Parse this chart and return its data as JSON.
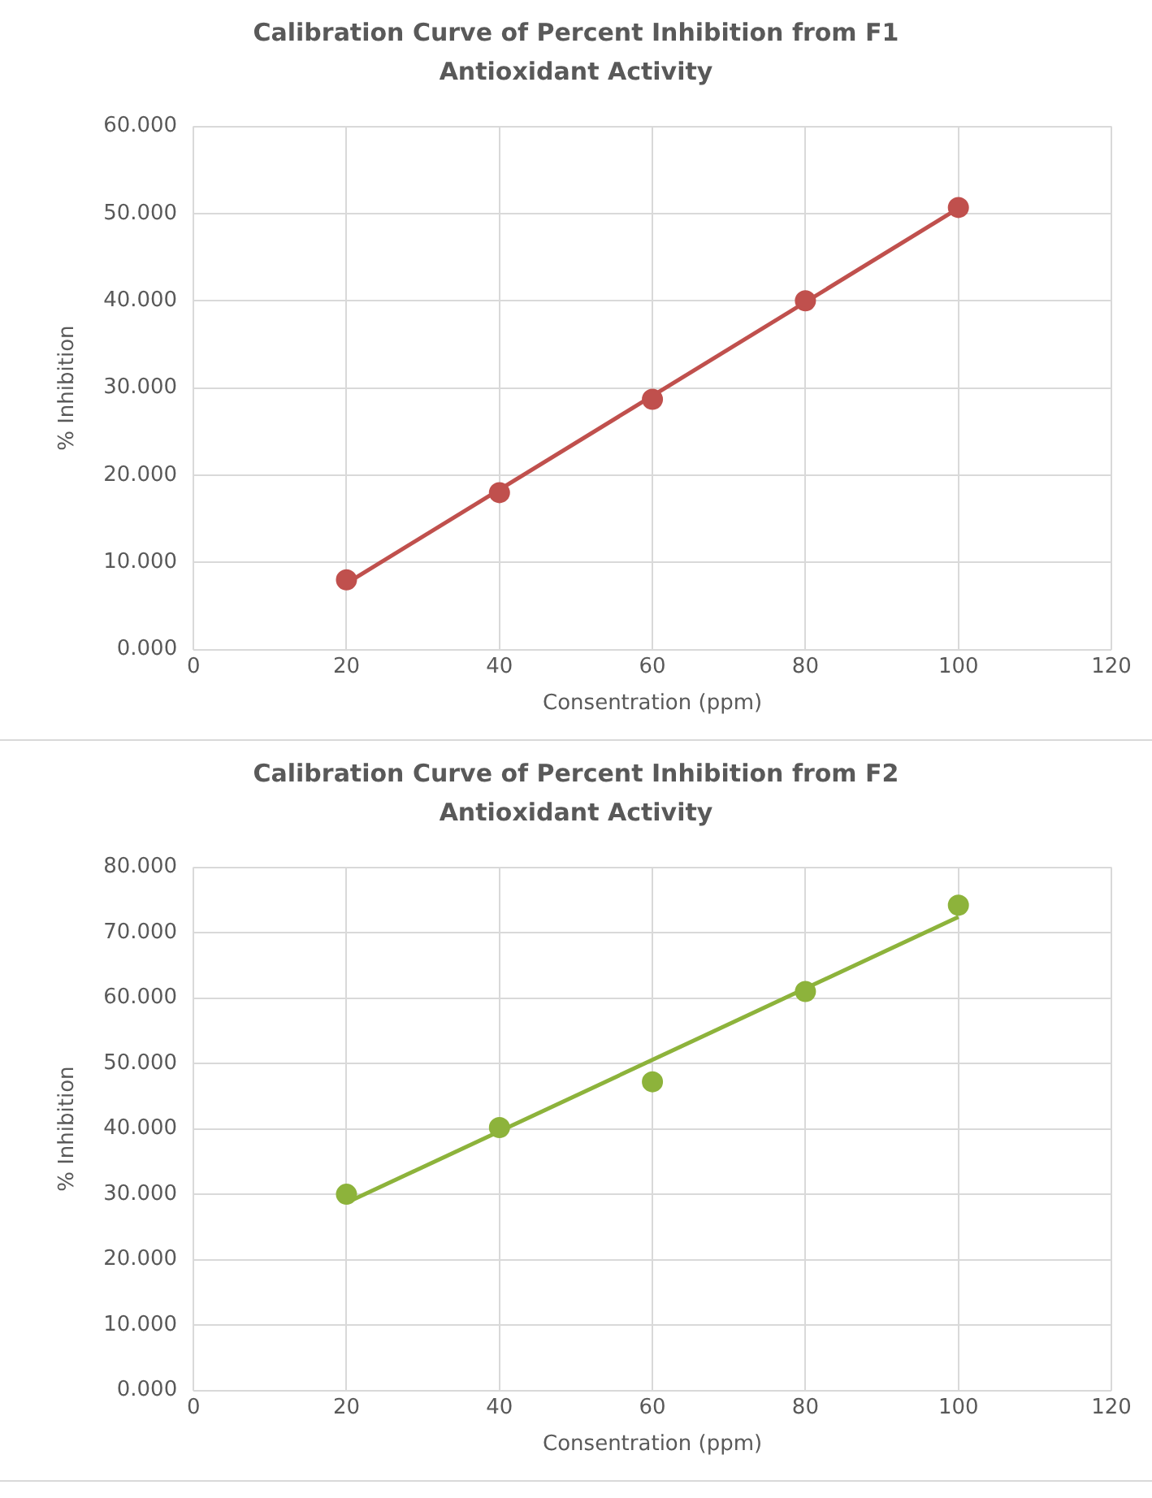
{
  "chart_data": [
    {
      "type": "scatter",
      "title": "Calibration Curve of Percent Inhibition from F1 Antioxidant Activity",
      "xlabel": "Consentration (ppm)",
      "ylabel": "% Inhibition",
      "series": [
        {
          "type": "scatter",
          "color": "#c0504d",
          "x": [
            20,
            40,
            60,
            80,
            100
          ],
          "values": [
            8,
            18,
            28.7,
            40,
            50.7
          ],
          "marker": "circle"
        },
        {
          "type": "line",
          "color": "#c0504d",
          "x": [
            20,
            100
          ],
          "values": [
            7.6,
            50.6
          ],
          "marker": "none"
        }
      ],
      "xlim": [
        0,
        120
      ],
      "xticks": [
        0,
        20,
        40,
        60,
        80,
        100,
        120
      ],
      "ylim": [
        0,
        60
      ],
      "yticks": [
        {
          "value": 0,
          "label": "0.000"
        },
        {
          "value": 10,
          "label": "10.000"
        },
        {
          "value": 20,
          "label": "20.000"
        },
        {
          "value": 30,
          "label": "30.000"
        },
        {
          "value": 40,
          "label": "40.000"
        },
        {
          "value": 50,
          "label": "50.000"
        },
        {
          "value": 60,
          "label": "60.000"
        }
      ],
      "grid": true,
      "legend": false
    },
    {
      "type": "scatter",
      "title": "Calibration Curve of Percent Inhibition from F2 Antioxidant Activity",
      "xlabel": "Consentration (ppm)",
      "ylabel": "% Inhibition",
      "series": [
        {
          "type": "scatter",
          "color": "#8db33b",
          "x": [
            20,
            40,
            60,
            80,
            100
          ],
          "values": [
            30,
            40.2,
            47.2,
            61,
            74.2
          ],
          "marker": "circle"
        },
        {
          "type": "line",
          "color": "#8db33b",
          "x": [
            20,
            100
          ],
          "values": [
            28.7,
            72.4
          ],
          "marker": "none"
        }
      ],
      "xlim": [
        0,
        120
      ],
      "xticks": [
        0,
        20,
        40,
        60,
        80,
        100,
        120
      ],
      "ylim": [
        0,
        80
      ],
      "yticks": [
        {
          "value": 0,
          "label": "0.000"
        },
        {
          "value": 10,
          "label": "10.000"
        },
        {
          "value": 20,
          "label": "20.000"
        },
        {
          "value": 30,
          "label": "30.000"
        },
        {
          "value": 40,
          "label": "40.000"
        },
        {
          "value": 50,
          "label": "50.000"
        },
        {
          "value": 60,
          "label": "60.000"
        },
        {
          "value": 70,
          "label": "70.000"
        },
        {
          "value": 80,
          "label": "80.000"
        }
      ],
      "grid": true,
      "legend": false
    }
  ]
}
